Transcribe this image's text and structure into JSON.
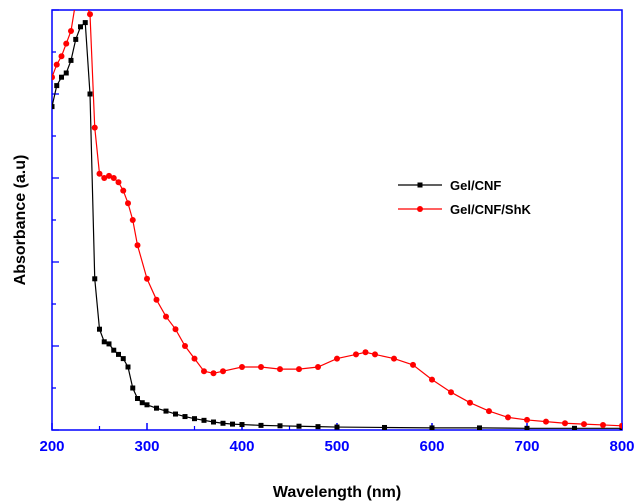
{
  "chart_data": {
    "type": "line",
    "title": "",
    "xlabel": "Wavelength (nm)",
    "ylabel": "Absorbance (a.u)",
    "xlim": [
      200,
      800
    ],
    "ylim": [
      0,
      1.0
    ],
    "y_tick_labels_shown": false,
    "x_ticks": [
      200,
      300,
      400,
      500,
      600,
      700,
      800
    ],
    "x_tick_labels": [
      "200",
      "300",
      "400",
      "500",
      "600",
      "700",
      "800"
    ],
    "tick_label_color": "#0000ff",
    "axis_color": "#0000ff",
    "grid": false,
    "legend_position": "center-right",
    "series": [
      {
        "name": "Gel/CNF",
        "color": "#000000",
        "marker": "square",
        "x": [
          200,
          205,
          210,
          215,
          220,
          225,
          230,
          235,
          240,
          245,
          250,
          255,
          260,
          265,
          270,
          275,
          280,
          285,
          290,
          295,
          300,
          310,
          320,
          330,
          340,
          350,
          360,
          370,
          380,
          390,
          400,
          420,
          440,
          460,
          480,
          500,
          550,
          600,
          650,
          700,
          750,
          800
        ],
        "y": [
          0.77,
          0.82,
          0.84,
          0.85,
          0.88,
          0.93,
          0.96,
          0.97,
          0.8,
          0.36,
          0.24,
          0.21,
          0.205,
          0.19,
          0.18,
          0.17,
          0.15,
          0.1,
          0.075,
          0.065,
          0.06,
          0.052,
          0.045,
          0.038,
          0.032,
          0.027,
          0.023,
          0.019,
          0.016,
          0.014,
          0.013,
          0.011,
          0.01,
          0.009,
          0.008,
          0.007,
          0.006,
          0.005,
          0.005,
          0.004,
          0.004,
          0.004
        ]
      },
      {
        "name": "Gel/CNF/ShK",
        "color": "#ff0000",
        "marker": "circle",
        "x": [
          200,
          205,
          210,
          215,
          220,
          225,
          230,
          235,
          240,
          245,
          250,
          255,
          260,
          265,
          270,
          275,
          280,
          285,
          290,
          300,
          310,
          320,
          330,
          340,
          350,
          360,
          370,
          380,
          400,
          420,
          440,
          460,
          480,
          500,
          520,
          530,
          540,
          560,
          580,
          600,
          620,
          640,
          660,
          680,
          700,
          720,
          740,
          760,
          780,
          800
        ],
        "y": [
          0.84,
          0.87,
          0.89,
          0.92,
          0.95,
          1.02,
          1.02,
          1.02,
          0.99,
          0.72,
          0.61,
          0.6,
          0.605,
          0.6,
          0.59,
          0.57,
          0.54,
          0.5,
          0.44,
          0.36,
          0.31,
          0.27,
          0.24,
          0.2,
          0.17,
          0.14,
          0.135,
          0.14,
          0.15,
          0.15,
          0.145,
          0.145,
          0.15,
          0.17,
          0.18,
          0.185,
          0.18,
          0.17,
          0.155,
          0.12,
          0.09,
          0.065,
          0.045,
          0.03,
          0.024,
          0.02,
          0.016,
          0.014,
          0.012,
          0.01
        ]
      }
    ]
  }
}
